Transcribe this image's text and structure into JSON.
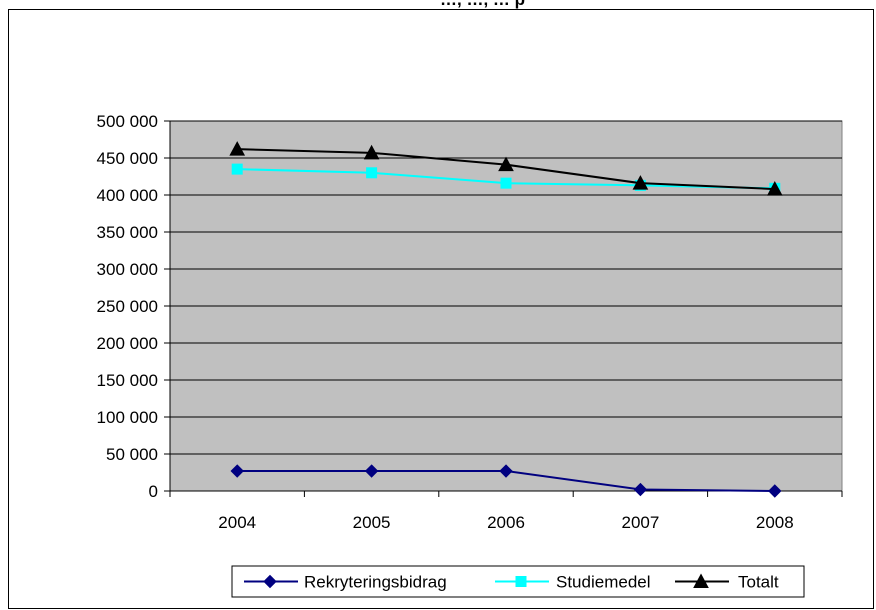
{
  "title_fragment": "…, …, … p",
  "chart_data": {
    "type": "line",
    "categories": [
      "2004",
      "2005",
      "2006",
      "2007",
      "2008"
    ],
    "ylim": [
      0,
      500000
    ],
    "yticks": [
      0,
      50000,
      100000,
      150000,
      200000,
      250000,
      300000,
      350000,
      400000,
      450000,
      500000
    ],
    "ytick_labels": [
      "0",
      "50 000",
      "100 000",
      "150 000",
      "200 000",
      "250 000",
      "300 000",
      "350 000",
      "400 000",
      "450 000",
      "500 000"
    ],
    "grid": "horizontal",
    "legend_position": "bottom",
    "plot_background": "#c0c0c0",
    "series": [
      {
        "name": "Rekryteringsbidrag",
        "color": "#000080",
        "marker": "diamond",
        "values": [
          27000,
          27000,
          27000,
          2000,
          0
        ]
      },
      {
        "name": "Studiemedel",
        "color": "#00ffff",
        "marker": "square",
        "values": [
          435000,
          430000,
          416000,
          413000,
          409000
        ]
      },
      {
        "name": "Totalt",
        "color": "#000000",
        "marker": "triangle",
        "values": [
          462000,
          457000,
          441000,
          416000,
          408000
        ]
      }
    ]
  }
}
